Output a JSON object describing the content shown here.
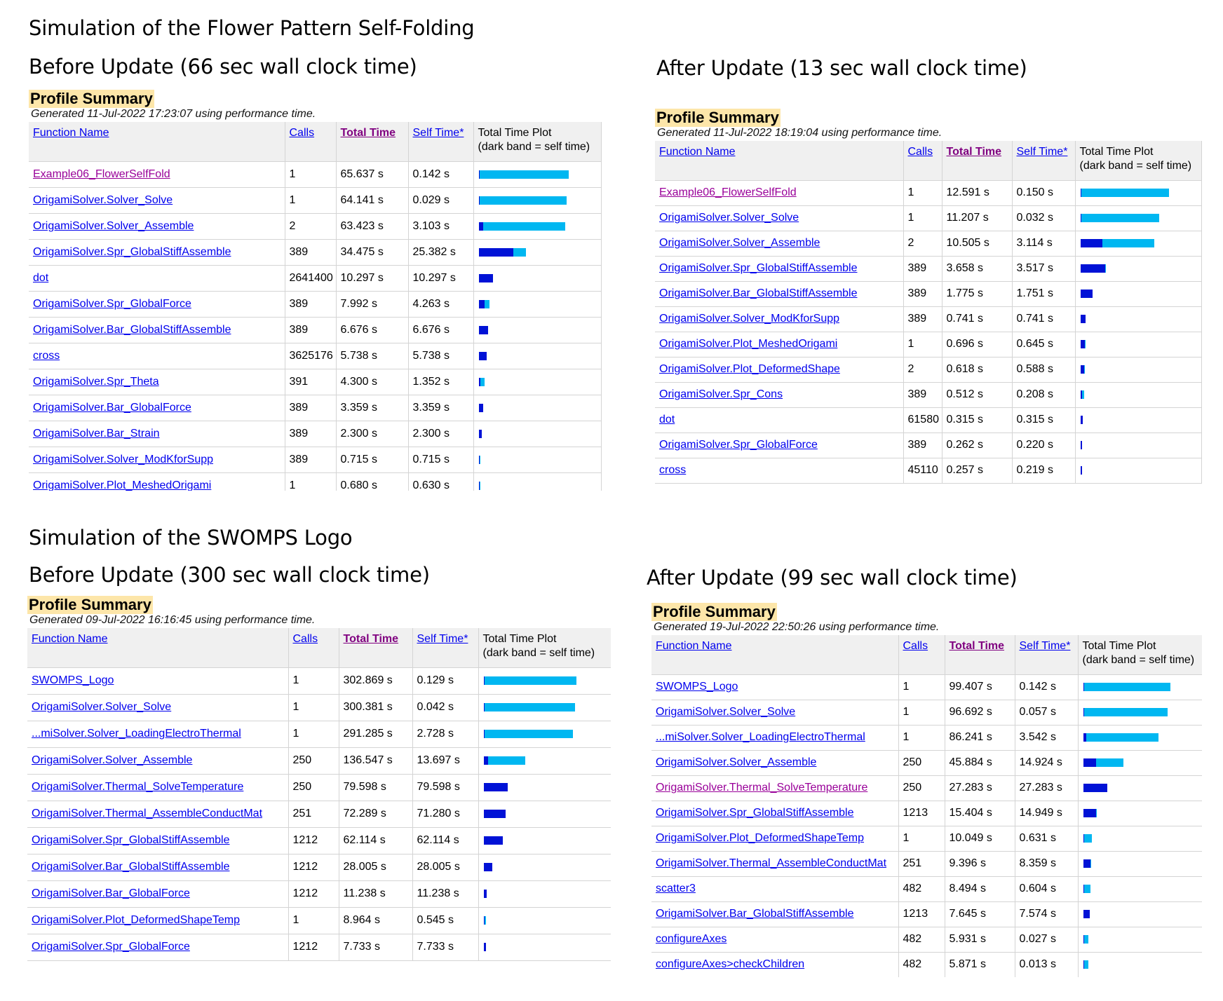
{
  "headings": {
    "flower": "Simulation of the Flower Pattern Self-Folding",
    "flower_before": "Before Update (66 sec wall clock time)",
    "flower_after": "After Update (13 sec wall clock time)",
    "logo": "Simulation of the SWOMPS Logo",
    "logo_before": "Before Update (300 sec wall clock time)",
    "logo_after": "After Update (99 sec wall clock time)"
  },
  "columns": {
    "function_name": "Function Name",
    "calls": "Calls",
    "total_time": "Total Time",
    "self_time": "Self Time*",
    "plot_line1": "Total Time Plot",
    "plot_line2": "(dark band = self time)"
  },
  "colors": {
    "total_band": "#00b7f1",
    "self_band": "#0012d6",
    "summary_bg": "#fde6a9"
  },
  "panels": [
    {
      "title": "Profile Summary",
      "generated": "Generated 11-Jul-2022 17:23:07 using performance time.",
      "max_time": 65.637,
      "rows": [
        {
          "name": "Example06_FlowerSelfFold",
          "calls": "1",
          "total": "65.637 s",
          "self": "0.142 s",
          "t": 65.637,
          "s": 0.142,
          "visited": true
        },
        {
          "name": "OrigamiSolver.Solver_Solve",
          "calls": "1",
          "total": "64.141 s",
          "self": "0.029 s",
          "t": 64.141,
          "s": 0.029
        },
        {
          "name": "OrigamiSolver.Solver_Assemble",
          "calls": "2",
          "total": "63.423 s",
          "self": "3.103 s",
          "t": 63.423,
          "s": 3.103
        },
        {
          "name": "OrigamiSolver.Spr_GlobalStiffAssemble",
          "calls": "389",
          "total": "34.475 s",
          "self": "25.382 s",
          "t": 34.475,
          "s": 25.382
        },
        {
          "name": "dot",
          "calls": "2641400",
          "total": "10.297 s",
          "self": "10.297 s",
          "t": 10.297,
          "s": 10.297
        },
        {
          "name": "OrigamiSolver.Spr_GlobalForce",
          "calls": "389",
          "total": "7.992 s",
          "self": "4.263 s",
          "t": 7.992,
          "s": 4.263
        },
        {
          "name": "OrigamiSolver.Bar_GlobalStiffAssemble",
          "calls": "389",
          "total": "6.676 s",
          "self": "6.676 s",
          "t": 6.676,
          "s": 6.676
        },
        {
          "name": "cross",
          "calls": "3625176",
          "total": "5.738 s",
          "self": "5.738 s",
          "t": 5.738,
          "s": 5.738
        },
        {
          "name": "OrigamiSolver.Spr_Theta",
          "calls": "391",
          "total": "4.300 s",
          "self": "1.352 s",
          "t": 4.3,
          "s": 1.352
        },
        {
          "name": "OrigamiSolver.Bar_GlobalForce",
          "calls": "389",
          "total": "3.359 s",
          "self": "3.359 s",
          "t": 3.359,
          "s": 3.359
        },
        {
          "name": "OrigamiSolver.Bar_Strain",
          "calls": "389",
          "total": "2.300 s",
          "self": "2.300 s",
          "t": 2.3,
          "s": 2.3
        },
        {
          "name": "OrigamiSolver.Solver_ModKforSupp",
          "calls": "389",
          "total": "0.715 s",
          "self": "0.715 s",
          "t": 0.715,
          "s": 0.715
        },
        {
          "name": "OrigamiSolver.Plot_MeshedOrigami",
          "calls": "1",
          "total": "0.680 s",
          "self": "0.630 s",
          "t": 0.68,
          "s": 0.63
        }
      ]
    },
    {
      "title": "Profile Summary",
      "generated": "Generated 11-Jul-2022 18:19:04 using performance time.",
      "max_time": 12.591,
      "rows": [
        {
          "name": "Example06_FlowerSelfFold",
          "calls": "1",
          "total": "12.591 s",
          "self": "0.150 s",
          "t": 12.591,
          "s": 0.15,
          "visited": true
        },
        {
          "name": "OrigamiSolver.Solver_Solve",
          "calls": "1",
          "total": "11.207 s",
          "self": "0.032 s",
          "t": 11.207,
          "s": 0.032
        },
        {
          "name": "OrigamiSolver.Solver_Assemble",
          "calls": "2",
          "total": "10.505 s",
          "self": "3.114 s",
          "t": 10.505,
          "s": 3.114
        },
        {
          "name": "OrigamiSolver.Spr_GlobalStiffAssemble",
          "calls": "389",
          "total": "3.658 s",
          "self": "3.517 s",
          "t": 3.658,
          "s": 3.517
        },
        {
          "name": "OrigamiSolver.Bar_GlobalStiffAssemble",
          "calls": "389",
          "total": "1.775 s",
          "self": "1.751 s",
          "t": 1.775,
          "s": 1.751
        },
        {
          "name": "OrigamiSolver.Solver_ModKforSupp",
          "calls": "389",
          "total": "0.741 s",
          "self": "0.741 s",
          "t": 0.741,
          "s": 0.741
        },
        {
          "name": "OrigamiSolver.Plot_MeshedOrigami",
          "calls": "1",
          "total": "0.696 s",
          "self": "0.645 s",
          "t": 0.696,
          "s": 0.645
        },
        {
          "name": "OrigamiSolver.Plot_DeformedShape",
          "calls": "2",
          "total": "0.618 s",
          "self": "0.588 s",
          "t": 0.618,
          "s": 0.588
        },
        {
          "name": "OrigamiSolver.Spr_Cons",
          "calls": "389",
          "total": "0.512 s",
          "self": "0.208 s",
          "t": 0.512,
          "s": 0.208
        },
        {
          "name": "dot",
          "calls": "61580",
          "total": "0.315 s",
          "self": "0.315 s",
          "t": 0.315,
          "s": 0.315
        },
        {
          "name": "OrigamiSolver.Spr_GlobalForce",
          "calls": "389",
          "total": "0.262 s",
          "self": "0.220 s",
          "t": 0.262,
          "s": 0.22
        },
        {
          "name": "cross",
          "calls": "45110",
          "total": "0.257 s",
          "self": "0.219 s",
          "t": 0.257,
          "s": 0.219
        }
      ]
    },
    {
      "title": "Profile Summary",
      "generated": "Generated 09-Jul-2022 16:16:45 using performance time.",
      "max_time": 302.869,
      "rows": [
        {
          "name": "SWOMPS_Logo",
          "calls": "1",
          "total": "302.869 s",
          "self": "0.129 s",
          "t": 302.869,
          "s": 0.129
        },
        {
          "name": "OrigamiSolver.Solver_Solve",
          "calls": "1",
          "total": "300.381 s",
          "self": "0.042 s",
          "t": 300.381,
          "s": 0.042
        },
        {
          "name": "...miSolver.Solver_LoadingElectroThermal",
          "calls": "1",
          "total": "291.285 s",
          "self": "2.728 s",
          "t": 291.285,
          "s": 2.728
        },
        {
          "name": "OrigamiSolver.Solver_Assemble",
          "calls": "250",
          "total": "136.547 s",
          "self": "13.697 s",
          "t": 136.547,
          "s": 13.697
        },
        {
          "name": "OrigamiSolver.Thermal_SolveTemperature",
          "calls": "250",
          "total": "79.598 s",
          "self": "79.598 s",
          "t": 79.598,
          "s": 79.598
        },
        {
          "name": "OrigamiSolver.Thermal_AssembleConductMat",
          "calls": "251",
          "total": "72.289 s",
          "self": "71.280 s",
          "t": 72.289,
          "s": 71.28
        },
        {
          "name": "OrigamiSolver.Spr_GlobalStiffAssemble",
          "calls": "1212",
          "total": "62.114 s",
          "self": "62.114 s",
          "t": 62.114,
          "s": 62.114
        },
        {
          "name": "OrigamiSolver.Bar_GlobalStiffAssemble",
          "calls": "1212",
          "total": "28.005 s",
          "self": "28.005 s",
          "t": 28.005,
          "s": 28.005
        },
        {
          "name": "OrigamiSolver.Bar_GlobalForce",
          "calls": "1212",
          "total": "11.238 s",
          "self": "11.238 s",
          "t": 11.238,
          "s": 11.238
        },
        {
          "name": "OrigamiSolver.Plot_DeformedShapeTemp",
          "calls": "1",
          "total": "8.964 s",
          "self": "0.545 s",
          "t": 8.964,
          "s": 0.545
        },
        {
          "name": "OrigamiSolver.Spr_GlobalForce",
          "calls": "1212",
          "total": "7.733 s",
          "self": "7.733 s",
          "t": 7.733,
          "s": 7.733
        }
      ]
    },
    {
      "title": "Profile Summary",
      "generated": "Generated 19-Jul-2022 22:50:26 using performance time.",
      "max_time": 99.407,
      "rows": [
        {
          "name": "SWOMPS_Logo",
          "calls": "1",
          "total": "99.407 s",
          "self": "0.142 s",
          "t": 99.407,
          "s": 0.142
        },
        {
          "name": "OrigamiSolver.Solver_Solve",
          "calls": "1",
          "total": "96.692 s",
          "self": "0.057 s",
          "t": 96.692,
          "s": 0.057
        },
        {
          "name": "...miSolver.Solver_LoadingElectroThermal",
          "calls": "1",
          "total": "86.241 s",
          "self": "3.542 s",
          "t": 86.241,
          "s": 3.542
        },
        {
          "name": "OrigamiSolver.Solver_Assemble",
          "calls": "250",
          "total": "45.884 s",
          "self": "14.924 s",
          "t": 45.884,
          "s": 14.924
        },
        {
          "name": "OrigamiSolver.Thermal_SolveTemperature",
          "calls": "250",
          "total": "27.283 s",
          "self": "27.283 s",
          "t": 27.283,
          "s": 27.283,
          "visited": true
        },
        {
          "name": "OrigamiSolver.Spr_GlobalStiffAssemble",
          "calls": "1213",
          "total": "15.404 s",
          "self": "14.949 s",
          "t": 15.404,
          "s": 14.949
        },
        {
          "name": "OrigamiSolver.Plot_DeformedShapeTemp",
          "calls": "1",
          "total": "10.049 s",
          "self": "0.631 s",
          "t": 10.049,
          "s": 0.631
        },
        {
          "name": "OrigamiSolver.Thermal_AssembleConductMat",
          "calls": "251",
          "total": "9.396 s",
          "self": "8.359 s",
          "t": 9.396,
          "s": 8.359
        },
        {
          "name": "scatter3",
          "calls": "482",
          "total": "8.494 s",
          "self": "0.604 s",
          "t": 8.494,
          "s": 0.604
        },
        {
          "name": "OrigamiSolver.Bar_GlobalStiffAssemble",
          "calls": "1213",
          "total": "7.645 s",
          "self": "7.574 s",
          "t": 7.645,
          "s": 7.574
        },
        {
          "name": "configureAxes",
          "calls": "482",
          "total": "5.931 s",
          "self": "0.027 s",
          "t": 5.931,
          "s": 0.027
        },
        {
          "name": "configureAxes>checkChildren",
          "calls": "482",
          "total": "5.871 s",
          "self": "0.013 s",
          "t": 5.871,
          "s": 0.013
        }
      ]
    }
  ]
}
